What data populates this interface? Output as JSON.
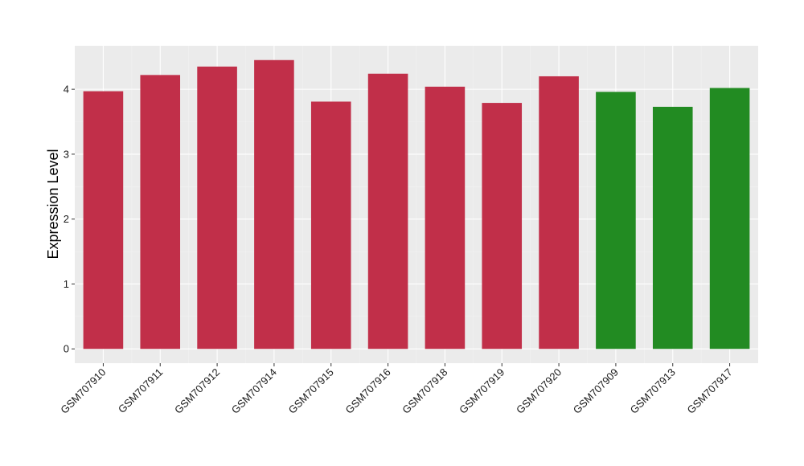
{
  "chart_data": {
    "type": "bar",
    "title": "",
    "xlabel": "",
    "ylabel": "Expression Level",
    "ylim": [
      -0.22,
      4.67
    ],
    "yticks": [
      0,
      1,
      2,
      3,
      4
    ],
    "ytick_labels": [
      "0",
      "1",
      "2",
      "3",
      "4"
    ],
    "grid": true,
    "legend": "none",
    "categories": [
      "GSM707910",
      "GSM707911",
      "GSM707912",
      "GSM707914",
      "GSM707915",
      "GSM707916",
      "GSM707918",
      "GSM707919",
      "GSM707920",
      "GSM707909",
      "GSM707913",
      "GSM707917"
    ],
    "values": [
      3.97,
      4.22,
      4.35,
      4.45,
      3.81,
      4.24,
      4.04,
      3.79,
      4.2,
      3.96,
      3.73,
      4.02
    ],
    "bar_colors": [
      "#c12f49",
      "#c12f49",
      "#c12f49",
      "#c12f49",
      "#c12f49",
      "#c12f49",
      "#c12f49",
      "#c12f49",
      "#c12f49",
      "#228b22",
      "#228b22",
      "#228b22"
    ]
  },
  "colors": {
    "panel_background": "#ebebeb",
    "grid_major": "#ffffff",
    "grid_minor": "#f2f2f2",
    "tick_mark": "#333333"
  }
}
